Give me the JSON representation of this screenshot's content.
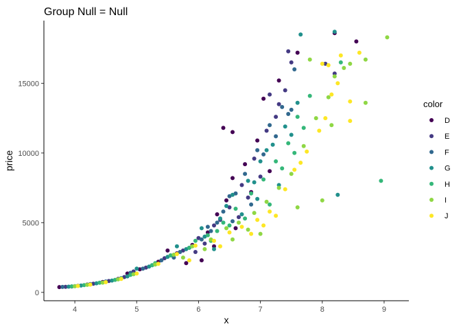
{
  "chart_data": {
    "type": "scatter",
    "title": "Group Null  = Null",
    "xlabel": "x",
    "ylabel": "price",
    "xlim": [
      3.5,
      9.4
    ],
    "ylim": [
      -600,
      19500
    ],
    "x_ticks": [
      4,
      5,
      6,
      7,
      8,
      9
    ],
    "y_ticks": [
      0,
      5000,
      10000,
      15000
    ],
    "grid": false,
    "legend": {
      "title": "color",
      "placement": "right",
      "entries": [
        {
          "name": "D",
          "color": "#440154"
        },
        {
          "name": "E",
          "color": "#443A83"
        },
        {
          "name": "F",
          "color": "#31688E"
        },
        {
          "name": "G",
          "color": "#21908C"
        },
        {
          "name": "H",
          "color": "#35B779"
        },
        {
          "name": "I",
          "color": "#8FD744"
        },
        {
          "name": "J",
          "color": "#FDE725"
        }
      ]
    },
    "series": [
      {
        "name": "D",
        "points": [
          [
            3.75,
            380
          ],
          [
            3.95,
            420
          ],
          [
            4.2,
            560
          ],
          [
            4.45,
            740
          ],
          [
            4.7,
            960
          ],
          [
            5.05,
            1650
          ],
          [
            5.35,
            2200
          ],
          [
            5.65,
            2800
          ],
          [
            5.9,
            3400
          ],
          [
            6.15,
            4300
          ],
          [
            6.3,
            5600
          ],
          [
            6.45,
            6600
          ],
          [
            6.55,
            8200
          ],
          [
            6.75,
            9200
          ],
          [
            6.95,
            10900
          ],
          [
            6.4,
            11800
          ],
          [
            6.55,
            11500
          ],
          [
            7.05,
            13900
          ],
          [
            7.3,
            15200
          ],
          [
            7.6,
            17200
          ],
          [
            8.2,
            18600
          ],
          [
            8.55,
            18000
          ],
          [
            6.05,
            2300
          ],
          [
            6.25,
            3300
          ],
          [
            5.5,
            3000
          ],
          [
            4.85,
            1350
          ],
          [
            6.85,
            7200
          ],
          [
            7.15,
            8700
          ],
          [
            5.8,
            2100
          ],
          [
            6.6,
            4600
          ]
        ]
      },
      {
        "name": "E",
        "points": [
          [
            3.85,
            400
          ],
          [
            4.05,
            470
          ],
          [
            4.3,
            620
          ],
          [
            4.55,
            820
          ],
          [
            4.8,
            1100
          ],
          [
            5.15,
            1780
          ],
          [
            5.45,
            2450
          ],
          [
            5.75,
            3000
          ],
          [
            6.0,
            3900
          ],
          [
            6.25,
            4800
          ],
          [
            6.5,
            6100
          ],
          [
            6.7,
            7700
          ],
          [
            6.9,
            9600
          ],
          [
            7.1,
            11600
          ],
          [
            7.25,
            12600
          ],
          [
            7.4,
            14500
          ],
          [
            7.5,
            16500
          ],
          [
            7.45,
            17300
          ],
          [
            8.05,
            16400
          ],
          [
            8.2,
            15700
          ],
          [
            7.0,
            8300
          ],
          [
            6.35,
            5200
          ],
          [
            5.55,
            2650
          ],
          [
            6.1,
            3500
          ],
          [
            6.8,
            6800
          ],
          [
            7.15,
            14200
          ],
          [
            7.3,
            13500
          ],
          [
            4.95,
            1500
          ],
          [
            5.95,
            2900
          ],
          [
            6.65,
            5400
          ]
        ]
      },
      {
        "name": "F",
        "points": [
          [
            3.8,
            390
          ],
          [
            4.0,
            450
          ],
          [
            4.25,
            590
          ],
          [
            4.5,
            780
          ],
          [
            4.75,
            1020
          ],
          [
            5.1,
            1700
          ],
          [
            5.4,
            2300
          ],
          [
            5.7,
            2900
          ],
          [
            6.05,
            3800
          ],
          [
            6.3,
            5000
          ],
          [
            6.5,
            6900
          ],
          [
            6.75,
            8500
          ],
          [
            6.95,
            10200
          ],
          [
            7.15,
            12000
          ],
          [
            7.35,
            13300
          ],
          [
            7.55,
            16000
          ],
          [
            7.5,
            13100
          ],
          [
            6.2,
            4400
          ],
          [
            6.6,
            7100
          ],
          [
            5.6,
            2500
          ],
          [
            6.4,
            5800
          ],
          [
            7.05,
            9900
          ],
          [
            7.25,
            11200
          ],
          [
            4.9,
            1400
          ],
          [
            5.85,
            3200
          ],
          [
            6.85,
            6300
          ],
          [
            7.45,
            12800
          ],
          [
            6.15,
            4700
          ],
          [
            5.25,
            1950
          ],
          [
            6.55,
            5100
          ]
        ]
      },
      {
        "name": "G",
        "points": [
          [
            3.9,
            410
          ],
          [
            4.1,
            490
          ],
          [
            4.35,
            650
          ],
          [
            4.6,
            850
          ],
          [
            4.85,
            1150
          ],
          [
            5.2,
            1850
          ],
          [
            5.5,
            2550
          ],
          [
            5.8,
            3100
          ],
          [
            6.1,
            4000
          ],
          [
            6.35,
            5300
          ],
          [
            6.55,
            7000
          ],
          [
            6.8,
            8000
          ],
          [
            7.0,
            9400
          ],
          [
            7.2,
            10600
          ],
          [
            7.4,
            11900
          ],
          [
            7.6,
            13600
          ],
          [
            7.65,
            18500
          ],
          [
            8.2,
            18700
          ],
          [
            8.25,
            7000
          ],
          [
            6.45,
            6200
          ],
          [
            6.9,
            7900
          ],
          [
            7.3,
            7700
          ],
          [
            6.05,
            4600
          ],
          [
            6.7,
            5600
          ],
          [
            5.65,
            3300
          ],
          [
            7.5,
            11300
          ],
          [
            7.1,
            10200
          ],
          [
            5.0,
            1700
          ],
          [
            6.25,
            3100
          ],
          [
            6.95,
            6700
          ]
        ]
      },
      {
        "name": "H",
        "points": [
          [
            3.95,
            430
          ],
          [
            4.15,
            520
          ],
          [
            4.4,
            690
          ],
          [
            4.65,
            900
          ],
          [
            4.9,
            1250
          ],
          [
            5.25,
            1950
          ],
          [
            5.55,
            2650
          ],
          [
            5.85,
            3200
          ],
          [
            6.15,
            4100
          ],
          [
            6.4,
            5000
          ],
          [
            6.6,
            6000
          ],
          [
            6.85,
            7100
          ],
          [
            7.05,
            8100
          ],
          [
            7.25,
            9400
          ],
          [
            7.45,
            10700
          ],
          [
            7.6,
            12600
          ],
          [
            7.8,
            14100
          ],
          [
            8.3,
            16500
          ],
          [
            8.95,
            8000
          ],
          [
            6.3,
            4400
          ],
          [
            6.75,
            5300
          ],
          [
            7.15,
            6300
          ],
          [
            5.95,
            3700
          ],
          [
            6.5,
            4800
          ],
          [
            7.35,
            8900
          ],
          [
            7.55,
            10000
          ],
          [
            5.3,
            2100
          ],
          [
            4.75,
            1000
          ],
          [
            6.2,
            3700
          ],
          [
            7.7,
            11800
          ]
        ]
      },
      {
        "name": "I",
        "points": [
          [
            4.0,
            440
          ],
          [
            4.2,
            540
          ],
          [
            4.45,
            700
          ],
          [
            4.7,
            930
          ],
          [
            4.95,
            1300
          ],
          [
            5.3,
            2000
          ],
          [
            5.6,
            2700
          ],
          [
            5.9,
            3300
          ],
          [
            6.2,
            3800
          ],
          [
            6.45,
            4600
          ],
          [
            6.65,
            5000
          ],
          [
            6.9,
            5700
          ],
          [
            7.1,
            6500
          ],
          [
            7.3,
            7500
          ],
          [
            7.5,
            8500
          ],
          [
            7.7,
            10500
          ],
          [
            7.9,
            12500
          ],
          [
            8.1,
            14000
          ],
          [
            8.2,
            15500
          ],
          [
            8.45,
            16400
          ],
          [
            9.05,
            18300
          ],
          [
            8.7,
            13600
          ],
          [
            8.7,
            16700
          ],
          [
            8.0,
            6600
          ],
          [
            7.6,
            6100
          ],
          [
            6.8,
            4500
          ],
          [
            7.0,
            4200
          ],
          [
            6.55,
            3800
          ],
          [
            6.1,
            3100
          ],
          [
            5.75,
            2500
          ],
          [
            8.35,
            16100
          ],
          [
            7.8,
            16700
          ],
          [
            8.15,
            12000
          ]
        ]
      },
      {
        "name": "J",
        "points": [
          [
            4.05,
            460
          ],
          [
            4.25,
            560
          ],
          [
            4.5,
            730
          ],
          [
            4.75,
            960
          ],
          [
            5.0,
            1350
          ],
          [
            5.35,
            2050
          ],
          [
            5.65,
            2750
          ],
          [
            5.95,
            3350
          ],
          [
            6.25,
            3700
          ],
          [
            6.5,
            4300
          ],
          [
            6.7,
            4700
          ],
          [
            6.95,
            5200
          ],
          [
            7.15,
            5800
          ],
          [
            7.4,
            7400
          ],
          [
            7.55,
            8800
          ],
          [
            7.75,
            10100
          ],
          [
            7.95,
            11600
          ],
          [
            8.05,
            12500
          ],
          [
            8.15,
            14200
          ],
          [
            8.0,
            16400
          ],
          [
            8.3,
            17000
          ],
          [
            8.45,
            13700
          ],
          [
            8.6,
            17200
          ],
          [
            8.45,
            12300
          ],
          [
            8.1,
            16300
          ],
          [
            6.35,
            3300
          ],
          [
            6.85,
            4200
          ],
          [
            7.05,
            4800
          ],
          [
            7.25,
            5500
          ],
          [
            7.65,
            9300
          ],
          [
            5.85,
            2300
          ],
          [
            8.25,
            15000
          ]
        ]
      }
    ]
  }
}
